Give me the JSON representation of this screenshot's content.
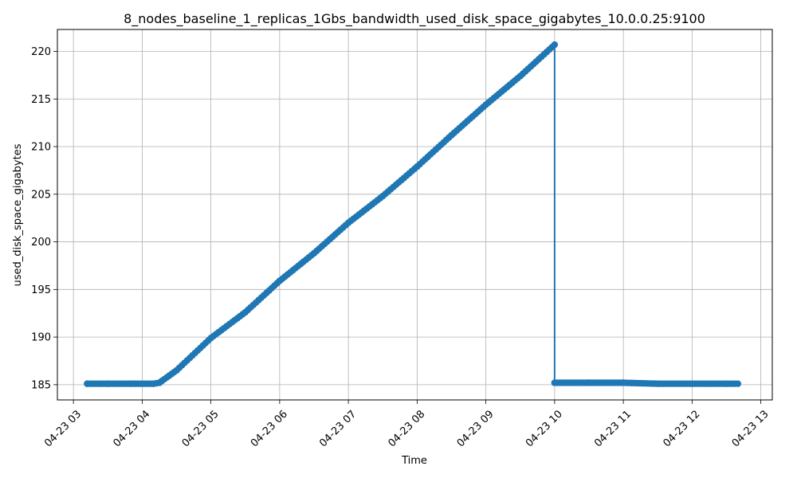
{
  "chart_data": {
    "type": "line",
    "title": "8_nodes_baseline_1_replicas_1Gbs_bandwidth_used_disk_space_gigabytes_10.0.0.25:9100",
    "xlabel": "Time",
    "ylabel": "used_disk_space_gigabytes",
    "xlim": [
      "04-23 02:46",
      "04-23 13:10"
    ],
    "ylim": [
      183.4,
      222.3
    ],
    "grid": true,
    "color": "#1f77b4",
    "marker": "circle",
    "x_ticks": [
      "04-23 03",
      "04-23 04",
      "04-23 05",
      "04-23 06",
      "04-23 07",
      "04-23 08",
      "04-23 09",
      "04-23 10",
      "04-23 11",
      "04-23 12",
      "04-23 13"
    ],
    "y_ticks": [
      185,
      190,
      195,
      200,
      205,
      210,
      215,
      220
    ],
    "series": [
      {
        "x": [
          "04-23 03:12",
          "04-23 03:30",
          "04-23 03:50",
          "04-23 04:10",
          "04-23 04:15",
          "04-23 04:30",
          "04-23 05:00",
          "04-23 05:30",
          "04-23 06:00",
          "04-23 06:30",
          "04-23 07:00",
          "04-23 07:30",
          "04-23 08:00",
          "04-23 08:30",
          "04-23 09:00",
          "04-23 09:30",
          "04-23 10:00",
          "04-23 10:00",
          "04-23 10:30",
          "04-23 11:00",
          "04-23 11:30",
          "04-23 12:00",
          "04-23 12:30",
          "04-23 12:40"
        ],
        "values": [
          185.1,
          185.1,
          185.1,
          185.1,
          185.2,
          186.5,
          189.9,
          192.6,
          195.9,
          198.8,
          202.0,
          204.8,
          207.9,
          211.2,
          214.4,
          217.4,
          220.7,
          185.2,
          185.2,
          185.2,
          185.1,
          185.1,
          185.1,
          185.1
        ]
      }
    ]
  }
}
